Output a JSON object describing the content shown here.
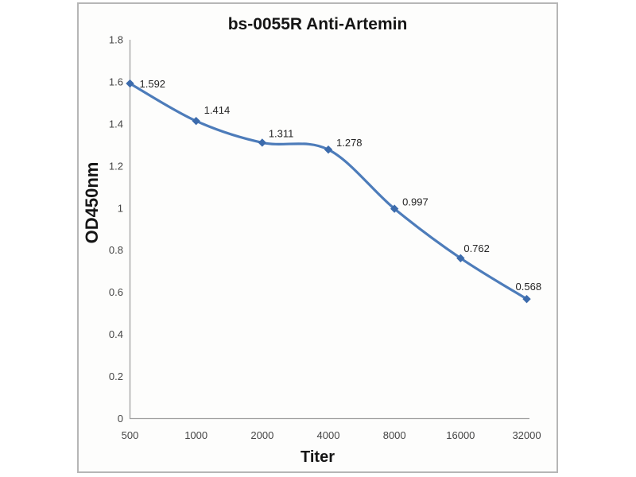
{
  "chart_data": {
    "type": "line",
    "title": "bs-0055R Anti-Artemin",
    "xlabel": "Titer",
    "ylabel": "OD450nm",
    "categories": [
      "500",
      "1000",
      "2000",
      "4000",
      "8000",
      "16000",
      "32000"
    ],
    "values": [
      1.592,
      1.414,
      1.311,
      1.278,
      0.997,
      0.762,
      0.568
    ],
    "data_labels": [
      "1.592",
      "1.414",
      "1.311",
      "1.278",
      "0.997",
      "0.762",
      "0.568"
    ],
    "series_name": "",
    "y_ticks": [
      "0",
      "0.2",
      "0.4",
      "0.6",
      "0.8",
      "1",
      "1.2",
      "1.4",
      "1.6",
      "1.8"
    ],
    "ylim": [
      0,
      1.8
    ],
    "grid": false,
    "legend_position": "none",
    "smooth": true,
    "marker": "diamond",
    "line_color": "#4d7cba",
    "marker_color": "#3c6bac",
    "axis_color": "#a0a0a0",
    "frame_border_color": "#b6b6b6"
  }
}
